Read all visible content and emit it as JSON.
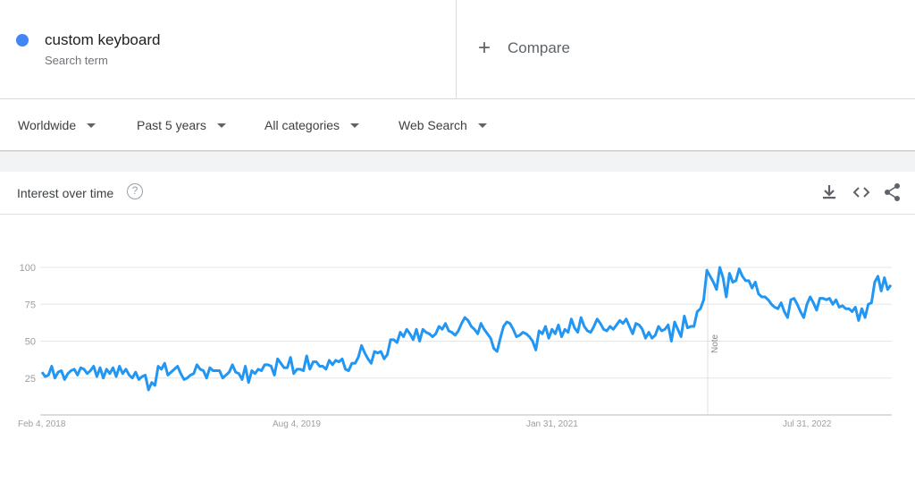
{
  "search_term": {
    "name": "custom keyboard",
    "subtitle": "Search term",
    "color": "#4285f4"
  },
  "compare": {
    "icon": "plus-icon",
    "label": "Compare"
  },
  "filters": [
    {
      "label": "Worldwide"
    },
    {
      "label": "Past 5 years"
    },
    {
      "label": "All categories"
    },
    {
      "label": "Web Search"
    }
  ],
  "card": {
    "title": "Interest over time",
    "help_icon": "?",
    "actions": [
      "download-icon",
      "embed-icon",
      "share-icon"
    ]
  },
  "chart_data": {
    "type": "line",
    "title": "",
    "xlabel": "",
    "ylabel": "",
    "ylim": [
      0,
      100
    ],
    "y_ticks": [
      25,
      50,
      75,
      100
    ],
    "x_tick_labels": [
      "Feb 4, 2018",
      "Aug 4, 2019",
      "Jan 31, 2021",
      "Jul 31, 2022"
    ],
    "x_range": [
      "Feb 4, 2018",
      "Jan 2023"
    ],
    "grid": true,
    "annotation": "Note",
    "series_color": "#2196f3",
    "series": [
      {
        "values": [
          29,
          26,
          27,
          33,
          25,
          29,
          30,
          24,
          28,
          30,
          31,
          27,
          32,
          31,
          28,
          30,
          33,
          26,
          32,
          25,
          31,
          28,
          32,
          26,
          33,
          28,
          31,
          27,
          25,
          29,
          24,
          26,
          27,
          17,
          22,
          20,
          33,
          31,
          35,
          27,
          29,
          31,
          33,
          28,
          24,
          25,
          27,
          28,
          34,
          31,
          30,
          25,
          32,
          30,
          30,
          30,
          25,
          27,
          29,
          34,
          29,
          28,
          24,
          33,
          22,
          30,
          28,
          31,
          30,
          34,
          34,
          33,
          27,
          38,
          35,
          32,
          32,
          39,
          28,
          31,
          31,
          30,
          40,
          31,
          36,
          36,
          33,
          33,
          31,
          37,
          34,
          37,
          36,
          38,
          31,
          30,
          35,
          35,
          39,
          47,
          42,
          38,
          35,
          43,
          42,
          43,
          38,
          41,
          51,
          51,
          49,
          56,
          53,
          58,
          55,
          51,
          58,
          50,
          58,
          56,
          55,
          53,
          55,
          60,
          58,
          62,
          57,
          56,
          54,
          57,
          62,
          66,
          64,
          60,
          58,
          55,
          62,
          58,
          55,
          52,
          45,
          43,
          52,
          60,
          63,
          62,
          58,
          53,
          54,
          56,
          55,
          53,
          50,
          44,
          57,
          55,
          60,
          52,
          58,
          55,
          61,
          53,
          58,
          56,
          65,
          59,
          56,
          66,
          60,
          57,
          56,
          60,
          65,
          62,
          58,
          57,
          60,
          58,
          61,
          64,
          62,
          65,
          60,
          55,
          62,
          61,
          58,
          52,
          56,
          52,
          54,
          60,
          57,
          58,
          61,
          50,
          63,
          58,
          53,
          67,
          59,
          60,
          60,
          70,
          72,
          78,
          98,
          94,
          90,
          85,
          100,
          93,
          80,
          96,
          90,
          91,
          99,
          94,
          91,
          91,
          86,
          90,
          82,
          80,
          80,
          78,
          75,
          73,
          72,
          76,
          70,
          66,
          78,
          79,
          75,
          70,
          66,
          75,
          80,
          76,
          71,
          79,
          79,
          78,
          79,
          75,
          78,
          73,
          74,
          72,
          72,
          70,
          73,
          64,
          72,
          66,
          75,
          76,
          90,
          94,
          84,
          93,
          85,
          88
        ]
      }
    ]
  }
}
